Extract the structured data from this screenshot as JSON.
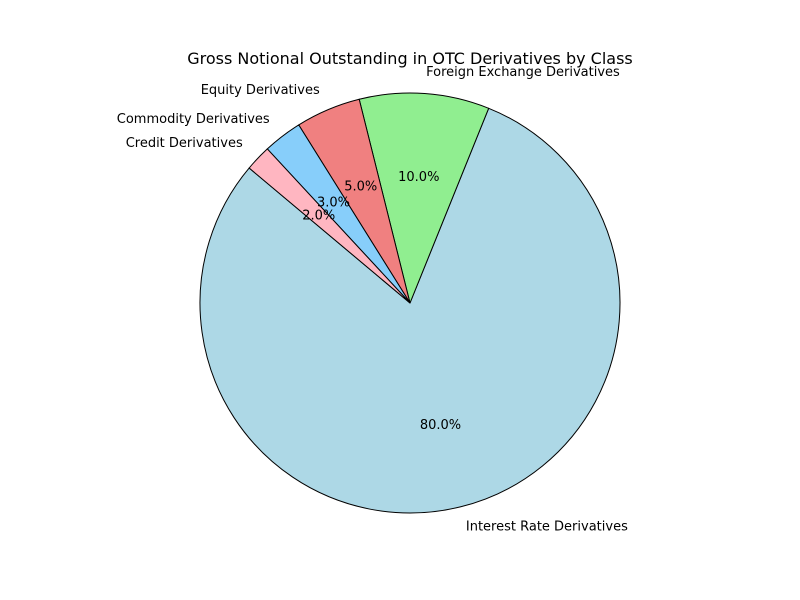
{
  "chart_data": {
    "type": "pie",
    "title": "Gross Notional Outstanding in OTC Derivatives by Class",
    "start_angle_deg": 140,
    "direction": "counterclockwise",
    "edge_color": "#000000",
    "slices": [
      {
        "label": "Interest Rate Derivatives",
        "value": 80.0,
        "pct_label": "80.0%",
        "color": "#add8e6"
      },
      {
        "label": "Foreign Exchange Derivatives",
        "value": 10.0,
        "pct_label": "10.0%",
        "color": "#90ee90"
      },
      {
        "label": "Equity Derivatives",
        "value": 5.0,
        "pct_label": "5.0%",
        "color": "#f08080"
      },
      {
        "label": "Commodity Derivatives",
        "value": 3.0,
        "pct_label": "3.0%",
        "color": "#87cefa"
      },
      {
        "label": "Credit Derivatives",
        "value": 2.0,
        "pct_label": "2.0%",
        "color": "#ffb6c1"
      }
    ]
  }
}
